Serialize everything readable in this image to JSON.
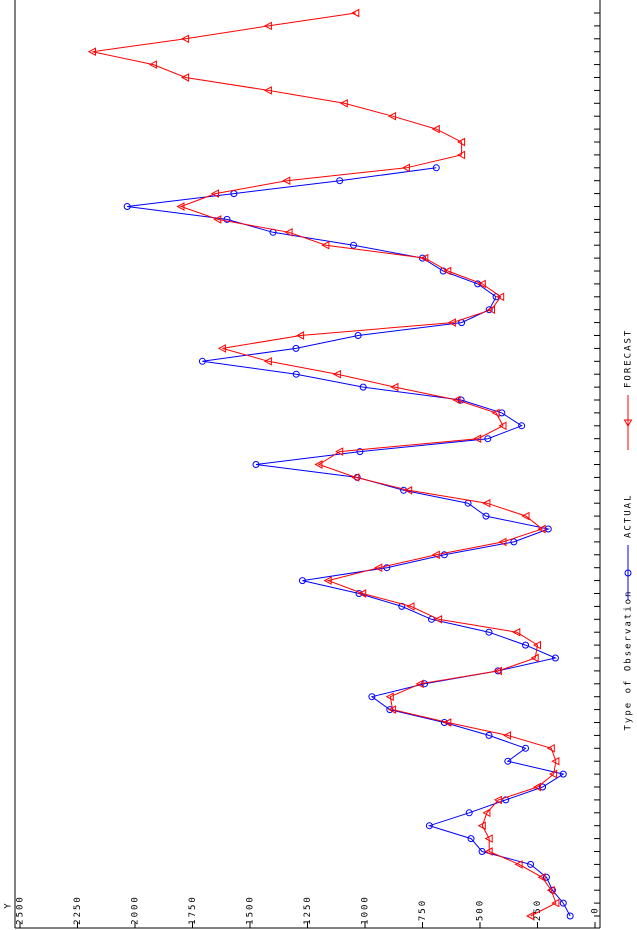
{
  "chart_data": {
    "type": "line",
    "y_label": "Y",
    "legend_title": "Type of Observation",
    "ylim": [
      0,
      2500
    ],
    "yticks": [
      0,
      250,
      500,
      750,
      1000,
      1250,
      1500,
      1750,
      2000,
      2250,
      2500
    ],
    "series": [
      {
        "name": "ACTUAL",
        "color": "#0000ff",
        "marker": "circle",
        "values": [
          108,
          138,
          185,
          211,
          280,
          491,
          539,
          720,
          547,
          388,
          228,
          138,
          379,
          302,
          461,
          655,
          892,
          970,
          741,
          422,
          172,
          302,
          461,
          711,
          840,
          1026,
          1272,
          905,
          655,
          353,
          203,
          474,
          552,
          832,
          1034,
          1474,
          1022,
          466,
          319,
          405,
          582,
          1008,
          1299,
          1707,
          1300,
          1030,
          580,
          460,
          430,
          510,
          660,
          750,
          1050,
          1400,
          1600,
          2034,
          1570,
          1110,
          690,
          null,
          null,
          null,
          null,
          null,
          null,
          null,
          null,
          null,
          null,
          null,
          null
        ]
      },
      {
        "name": "FORECAST",
        "color": "#ff0000",
        "marker": "triangle",
        "values": [
          280,
          170,
          190,
          230,
          330,
          460,
          460,
          490,
          470,
          420,
          250,
          180,
          170,
          190,
          380,
          640,
          880,
          890,
          760,
          420,
          260,
          250,
          340,
          680,
          800,
          1010,
          1160,
          940,
          690,
          400,
          230,
          300,
          470,
          810,
          1040,
          1200,
          1110,
          510,
          400,
          430,
          600,
          870,
          1120,
          1420,
          1620,
          1280,
          620,
          450,
          410,
          490,
          640,
          740,
          1170,
          1330,
          1640,
          1800,
          1650,
          1340,
          820,
          580,
          580,
          690,
          880,
          1090,
          1420,
          1780,
          1920,
          2185,
          1780,
          1420,
          1040
        ]
      }
    ]
  }
}
